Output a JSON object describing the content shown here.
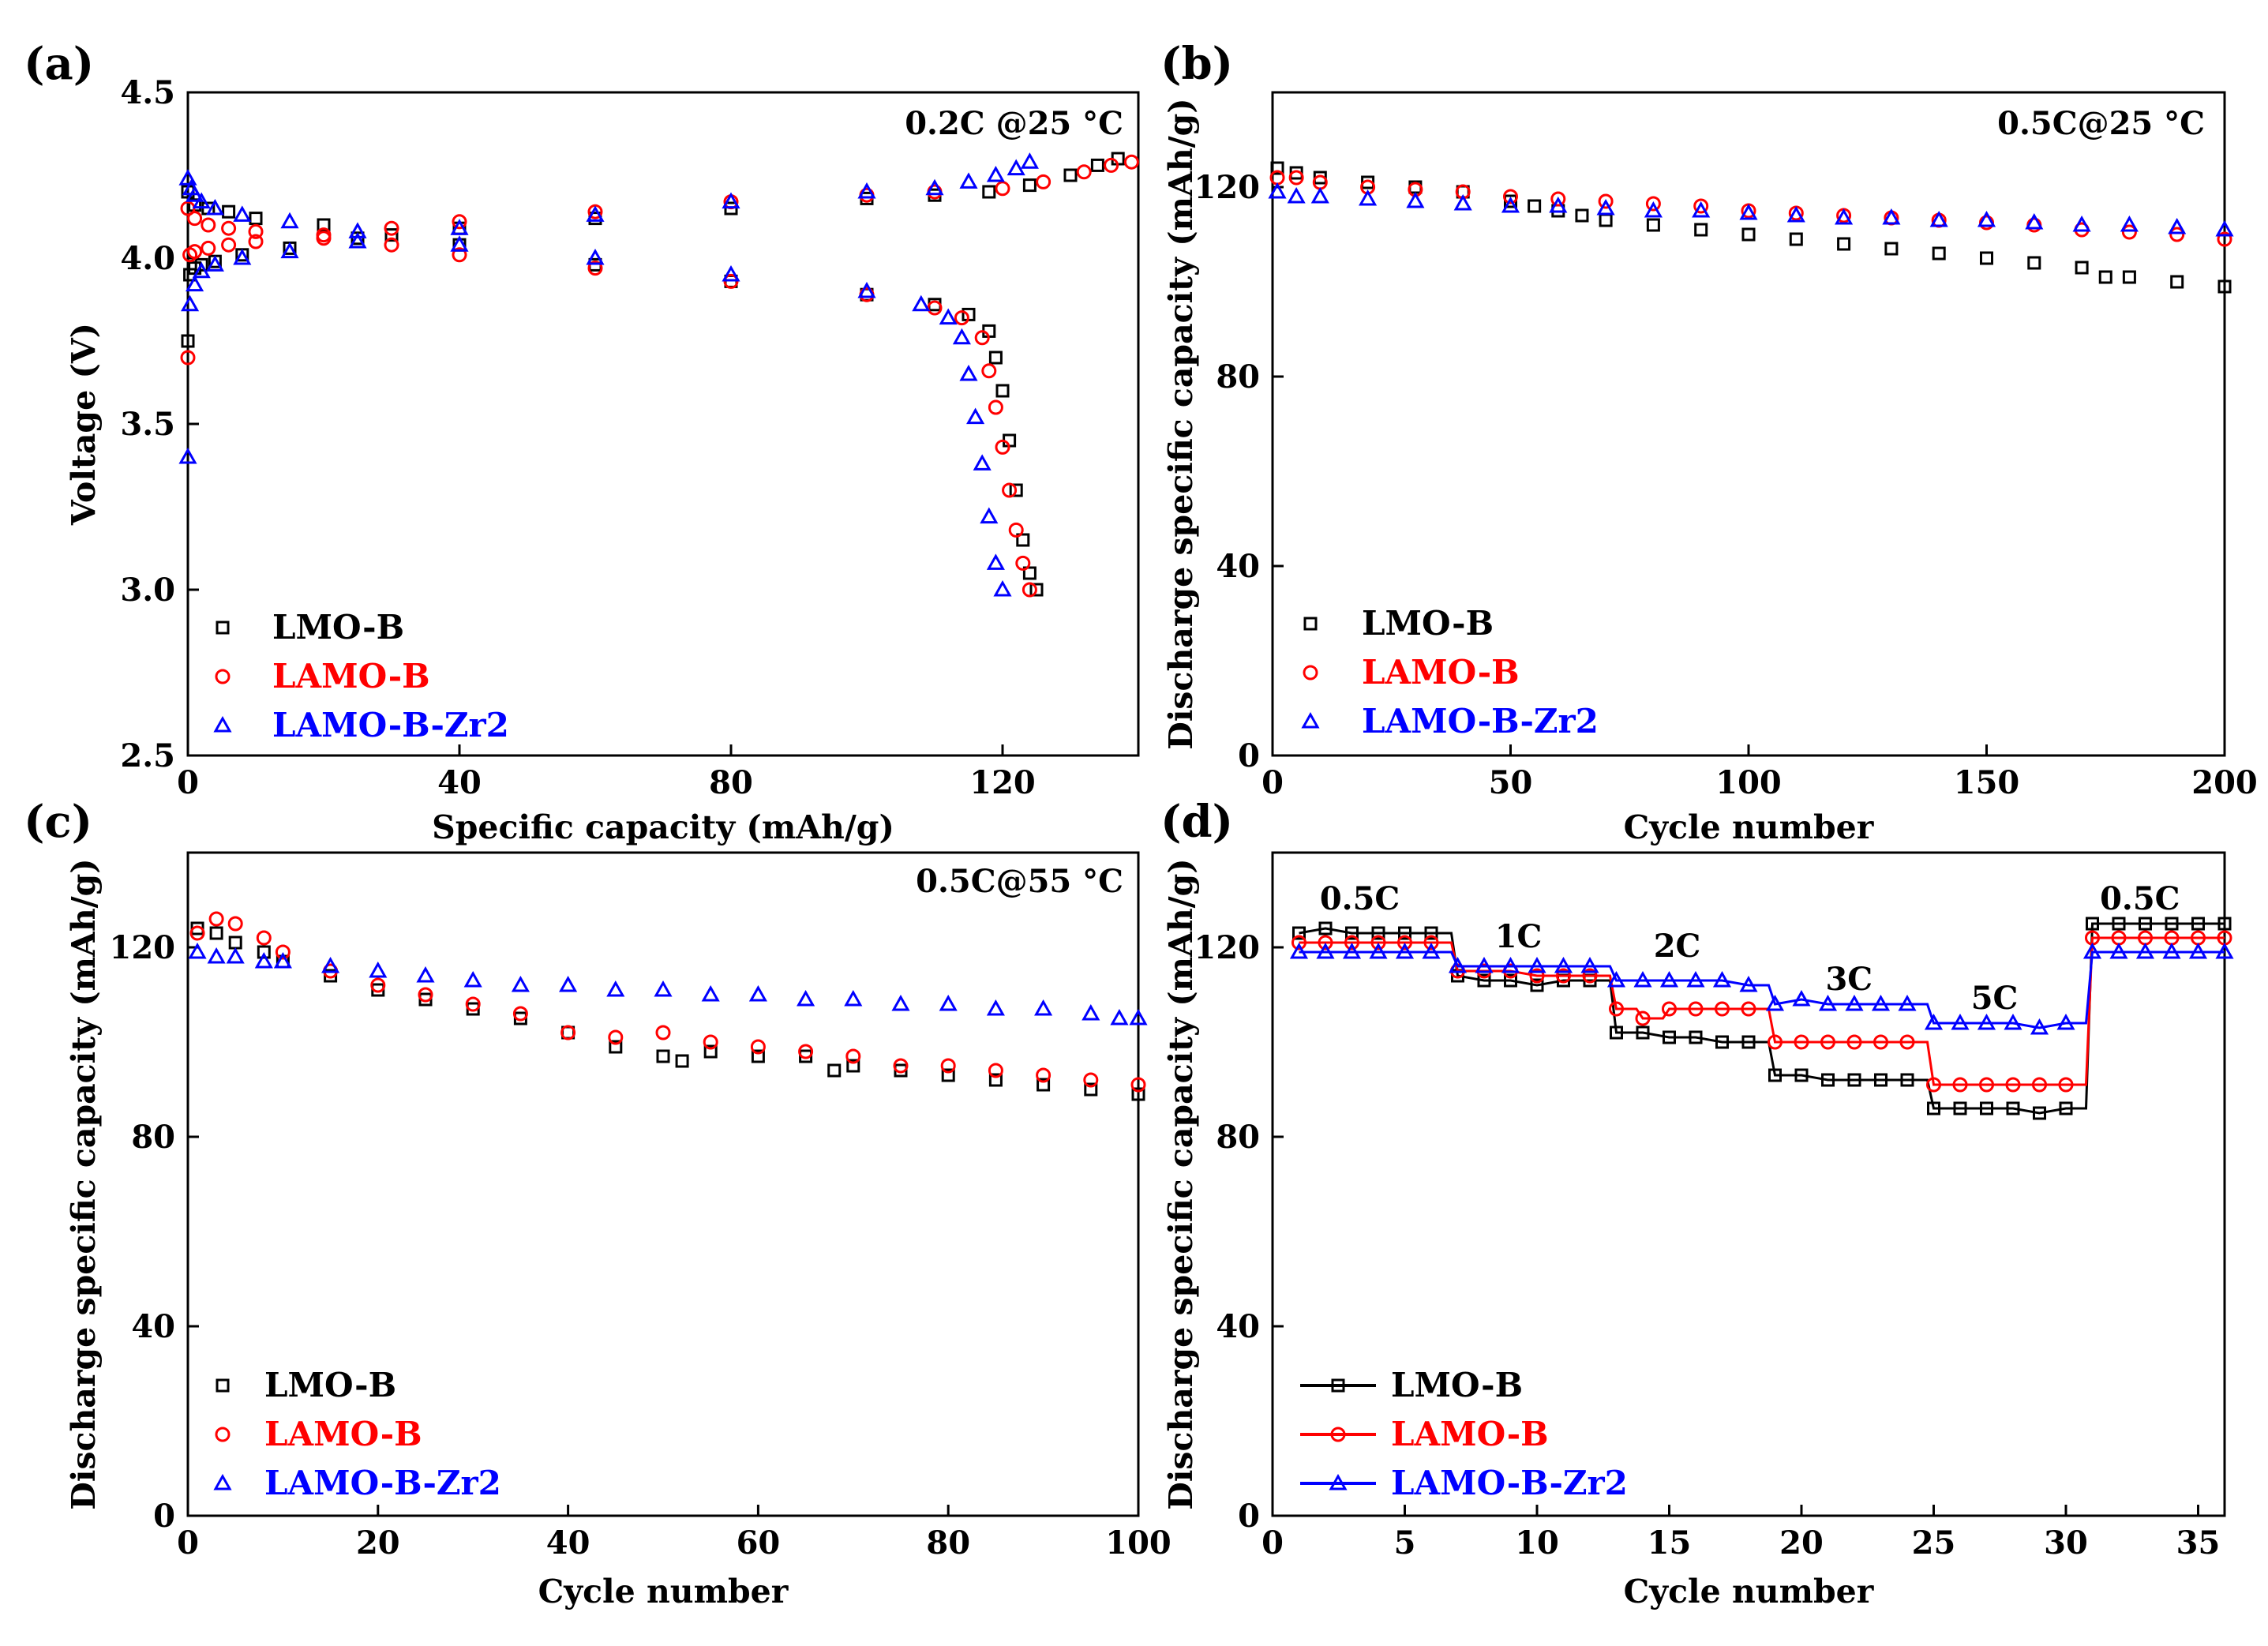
{
  "figure": {
    "series_styles": [
      {
        "name": "LMO-B",
        "color": "#000000",
        "marker": "square"
      },
      {
        "name": "LAMO-B",
        "color": "#ff0000",
        "marker": "circle"
      },
      {
        "name": "LAMO-B-Zr2",
        "color": "#0000ff",
        "marker": "triangle"
      }
    ]
  },
  "chart_data": [
    {
      "panel": "(a)",
      "type": "scatter",
      "annotation": "0.2C @25 °C",
      "xlabel": "Specific capacity (mAh/g)",
      "ylabel": "Voltage (V)",
      "xlim": [
        0,
        140
      ],
      "ylim": [
        2.5,
        4.5
      ],
      "xticks": [
        0,
        40,
        80,
        120
      ],
      "yticks": [
        2.5,
        3.0,
        3.5,
        4.0,
        4.5
      ],
      "xtick_labels": [
        "0",
        "40",
        "80",
        "120"
      ],
      "ytick_labels": [
        "2.5",
        "3.0",
        "3.5",
        "4.0",
        "4.5"
      ],
      "legend": [
        "LMO-B",
        "LAMO-B",
        "LAMO-B-Zr2"
      ],
      "legend_position": "bottom-left",
      "series": [
        {
          "name": "LMO-B",
          "curve": "charge",
          "x": [
            0,
            0.3,
            1,
            2,
            4,
            8,
            15,
            25,
            40,
            60,
            80,
            100,
            110,
            118,
            124,
            130,
            134,
            137
          ],
          "y": [
            3.75,
            3.95,
            3.97,
            3.98,
            3.99,
            4.01,
            4.03,
            4.06,
            4.09,
            4.12,
            4.15,
            4.18,
            4.19,
            4.2,
            4.22,
            4.25,
            4.28,
            4.3
          ]
        },
        {
          "name": "LMO-B",
          "curve": "discharge",
          "x": [
            0,
            1,
            3,
            6,
            10,
            20,
            30,
            40,
            60,
            80,
            100,
            110,
            115,
            118,
            119,
            120,
            121,
            122,
            123,
            124,
            125
          ],
          "y": [
            4.2,
            4.16,
            4.15,
            4.14,
            4.12,
            4.1,
            4.07,
            4.04,
            3.98,
            3.93,
            3.89,
            3.86,
            3.83,
            3.78,
            3.7,
            3.6,
            3.45,
            3.3,
            3.15,
            3.05,
            3.0
          ]
        },
        {
          "name": "LAMO-B",
          "curve": "charge",
          "x": [
            0,
            0.3,
            1,
            3,
            6,
            10,
            20,
            30,
            40,
            60,
            80,
            100,
            110,
            120,
            126,
            132,
            136,
            139
          ],
          "y": [
            3.7,
            4.01,
            4.02,
            4.03,
            4.04,
            4.05,
            4.07,
            4.09,
            4.11,
            4.14,
            4.17,
            4.19,
            4.2,
            4.21,
            4.23,
            4.26,
            4.28,
            4.29
          ]
        },
        {
          "name": "LAMO-B",
          "curve": "discharge",
          "x": [
            0,
            1,
            3,
            6,
            10,
            20,
            30,
            40,
            60,
            80,
            100,
            110,
            114,
            117,
            118,
            119,
            120,
            121,
            122,
            123,
            124
          ],
          "y": [
            4.15,
            4.12,
            4.1,
            4.09,
            4.08,
            4.06,
            4.04,
            4.01,
            3.97,
            3.93,
            3.89,
            3.85,
            3.82,
            3.76,
            3.66,
            3.55,
            3.43,
            3.3,
            3.18,
            3.08,
            3.0
          ]
        },
        {
          "name": "LAMO-B-Zr2",
          "curve": "charge",
          "x": [
            0,
            0.3,
            1,
            2,
            4,
            8,
            15,
            25,
            40,
            60,
            80,
            100,
            110,
            115,
            119,
            122,
            124
          ],
          "y": [
            3.4,
            3.86,
            3.92,
            3.96,
            3.98,
            4.0,
            4.02,
            4.05,
            4.09,
            4.13,
            4.17,
            4.2,
            4.21,
            4.23,
            4.25,
            4.27,
            4.29
          ]
        },
        {
          "name": "LAMO-B-Zr2",
          "curve": "discharge",
          "x": [
            0,
            0.5,
            1,
            2,
            4,
            8,
            15,
            25,
            40,
            60,
            80,
            100,
            108,
            112,
            114,
            115,
            116,
            117,
            118,
            119,
            120
          ],
          "y": [
            4.24,
            4.21,
            4.19,
            4.17,
            4.15,
            4.13,
            4.11,
            4.08,
            4.04,
            4.0,
            3.95,
            3.9,
            3.86,
            3.82,
            3.76,
            3.65,
            3.52,
            3.38,
            3.22,
            3.08,
            3.0
          ]
        }
      ]
    },
    {
      "panel": "(b)",
      "type": "scatter",
      "annotation": "0.5C@25 °C",
      "xlabel": "Cycle number",
      "ylabel": "Discharge specific capacity (mAh/g)",
      "xlim": [
        0,
        200
      ],
      "ylim": [
        0,
        140
      ],
      "xticks": [
        0,
        50,
        100,
        150,
        200
      ],
      "yticks": [
        0,
        40,
        80,
        120
      ],
      "xtick_labels": [
        "0",
        "50",
        "100",
        "150",
        "200"
      ],
      "ytick_labels": [
        "0",
        "40",
        "80",
        "120"
      ],
      "legend": [
        "LMO-B",
        "LAMO-B",
        "LAMO-B-Zr2"
      ],
      "legend_position": "bottom-left",
      "series": [
        {
          "name": "LMO-B",
          "x": [
            1,
            5,
            10,
            20,
            30,
            40,
            50,
            55,
            60,
            65,
            70,
            80,
            90,
            100,
            110,
            120,
            130,
            140,
            150,
            160,
            170,
            175,
            180,
            190,
            200
          ],
          "y": [
            124,
            123,
            122,
            121,
            120,
            119,
            117,
            116,
            115,
            114,
            113,
            112,
            111,
            110,
            109,
            108,
            107,
            106,
            105,
            104,
            103,
            101,
            101,
            100,
            99
          ]
        },
        {
          "name": "LAMO-B",
          "x": [
            1,
            5,
            10,
            20,
            30,
            40,
            50,
            60,
            70,
            80,
            90,
            100,
            110,
            120,
            130,
            140,
            150,
            160,
            170,
            180,
            190,
            200
          ],
          "y": [
            122,
            122,
            121,
            120,
            119.5,
            119,
            118,
            117.5,
            117,
            116.5,
            116,
            115,
            114.5,
            114,
            113.5,
            113,
            112.5,
            112,
            111,
            110.5,
            110,
            109
          ]
        },
        {
          "name": "LAMO-B-Zr2",
          "x": [
            1,
            5,
            10,
            20,
            30,
            40,
            50,
            60,
            70,
            80,
            90,
            100,
            110,
            120,
            130,
            140,
            150,
            160,
            170,
            180,
            190,
            200
          ],
          "y": [
            119,
            118,
            118,
            117.5,
            117,
            116.5,
            116,
            116,
            115.5,
            115,
            115,
            114.5,
            114,
            113.5,
            113.5,
            113,
            113,
            112.5,
            112,
            112,
            111.5,
            111
          ]
        }
      ]
    },
    {
      "panel": "(c)",
      "type": "scatter",
      "annotation": "0.5C@55 °C",
      "xlabel": "Cycle number",
      "ylabel": "Discharge specific capacity (mAh/g)",
      "xlim": [
        0,
        100
      ],
      "ylim": [
        0,
        140
      ],
      "xticks": [
        0,
        20,
        40,
        60,
        80,
        100
      ],
      "yticks": [
        0,
        40,
        80,
        120
      ],
      "xtick_labels": [
        "0",
        "20",
        "40",
        "60",
        "80",
        "100"
      ],
      "ytick_labels": [
        "0",
        "40",
        "80",
        "120"
      ],
      "legend": [
        "LMO-B",
        "LAMO-B",
        "LAMO-B-Zr2"
      ],
      "legend_position": "bottom-left",
      "series": [
        {
          "name": "LMO-B",
          "x": [
            1,
            3,
            5,
            8,
            10,
            15,
            20,
            25,
            30,
            35,
            40,
            45,
            50,
            52,
            55,
            60,
            65,
            68,
            70,
            75,
            80,
            85,
            90,
            95,
            100
          ],
          "y": [
            124,
            123,
            121,
            119,
            117,
            114,
            111,
            109,
            107,
            105,
            102,
            99,
            97,
            96,
            98,
            97,
            97,
            94,
            95,
            94,
            93,
            92,
            91,
            90,
            89
          ]
        },
        {
          "name": "LAMO-B",
          "x": [
            1,
            3,
            5,
            8,
            10,
            15,
            20,
            25,
            30,
            35,
            40,
            45,
            50,
            55,
            60,
            65,
            70,
            75,
            80,
            85,
            90,
            95,
            100
          ],
          "y": [
            123,
            126,
            125,
            122,
            119,
            115,
            112,
            110,
            108,
            106,
            102,
            101,
            102,
            100,
            99,
            98,
            97,
            95,
            95,
            94,
            93,
            92,
            91
          ]
        },
        {
          "name": "LAMO-B-Zr2",
          "x": [
            1,
            3,
            5,
            8,
            10,
            15,
            20,
            25,
            30,
            35,
            40,
            45,
            50,
            55,
            60,
            65,
            70,
            75,
            80,
            85,
            90,
            95,
            98,
            100
          ],
          "y": [
            119,
            118,
            118,
            117,
            117,
            116,
            115,
            114,
            113,
            112,
            112,
            111,
            111,
            110,
            110,
            109,
            109,
            108,
            108,
            107,
            107,
            106,
            105,
            105
          ]
        }
      ]
    },
    {
      "panel": "(d)",
      "type": "line",
      "xlabel": "Cycle number",
      "ylabel": "Discharge specific capacity (mAh/g)",
      "xlim": [
        0,
        36
      ],
      "ylim": [
        0,
        140
      ],
      "xticks": [
        0,
        5,
        10,
        15,
        20,
        25,
        30,
        35
      ],
      "yticks": [
        0,
        40,
        80,
        120
      ],
      "xtick_labels": [
        "0",
        "5",
        "10",
        "15",
        "20",
        "25",
        "30",
        "35"
      ],
      "ytick_labels": [
        "0",
        "40",
        "80",
        "120"
      ],
      "legend": [
        "LMO-B",
        "LAMO-B",
        "LAMO-B-Zr2"
      ],
      "legend_position": "bottom-left",
      "annotations": [
        {
          "text": "0.5C",
          "x": 3.3,
          "y": 128
        },
        {
          "text": "1C",
          "x": 9.3,
          "y": 120
        },
        {
          "text": "2C",
          "x": 15.3,
          "y": 118
        },
        {
          "text": "3C",
          "x": 21.8,
          "y": 111
        },
        {
          "text": "5C",
          "x": 27.3,
          "y": 107
        },
        {
          "text": "0.5C",
          "x": 32.8,
          "y": 128
        }
      ],
      "x": [
        1,
        2,
        3,
        4,
        5,
        6,
        7,
        8,
        9,
        10,
        11,
        12,
        13,
        14,
        15,
        16,
        17,
        18,
        19,
        20,
        21,
        22,
        23,
        24,
        25,
        26,
        27,
        28,
        29,
        30,
        31,
        32,
        33,
        34,
        35,
        36
      ],
      "series": [
        {
          "name": "LMO-B",
          "values": [
            123,
            124,
            123,
            123,
            123,
            123,
            114,
            113,
            113,
            112,
            113,
            113,
            102,
            102,
            101,
            101,
            100,
            100,
            93,
            93,
            92,
            92,
            92,
            92,
            86,
            86,
            86,
            86,
            85,
            86,
            125,
            125,
            125,
            125,
            125,
            125
          ]
        },
        {
          "name": "LAMO-B",
          "values": [
            121,
            121,
            121,
            121,
            121,
            121,
            115,
            115,
            115,
            114,
            114,
            114,
            107,
            105,
            107,
            107,
            107,
            107,
            100,
            100,
            100,
            100,
            100,
            100,
            91,
            91,
            91,
            91,
            91,
            91,
            122,
            122,
            122,
            122,
            122,
            122
          ]
        },
        {
          "name": "LAMO-B-Zr2",
          "values": [
            119,
            119,
            119,
            119,
            119,
            119,
            116,
            116,
            116,
            116,
            116,
            116,
            113,
            113,
            113,
            113,
            113,
            112,
            108,
            109,
            108,
            108,
            108,
            108,
            104,
            104,
            104,
            104,
            103,
            104,
            119,
            119,
            119,
            119,
            119,
            119
          ]
        }
      ]
    }
  ]
}
